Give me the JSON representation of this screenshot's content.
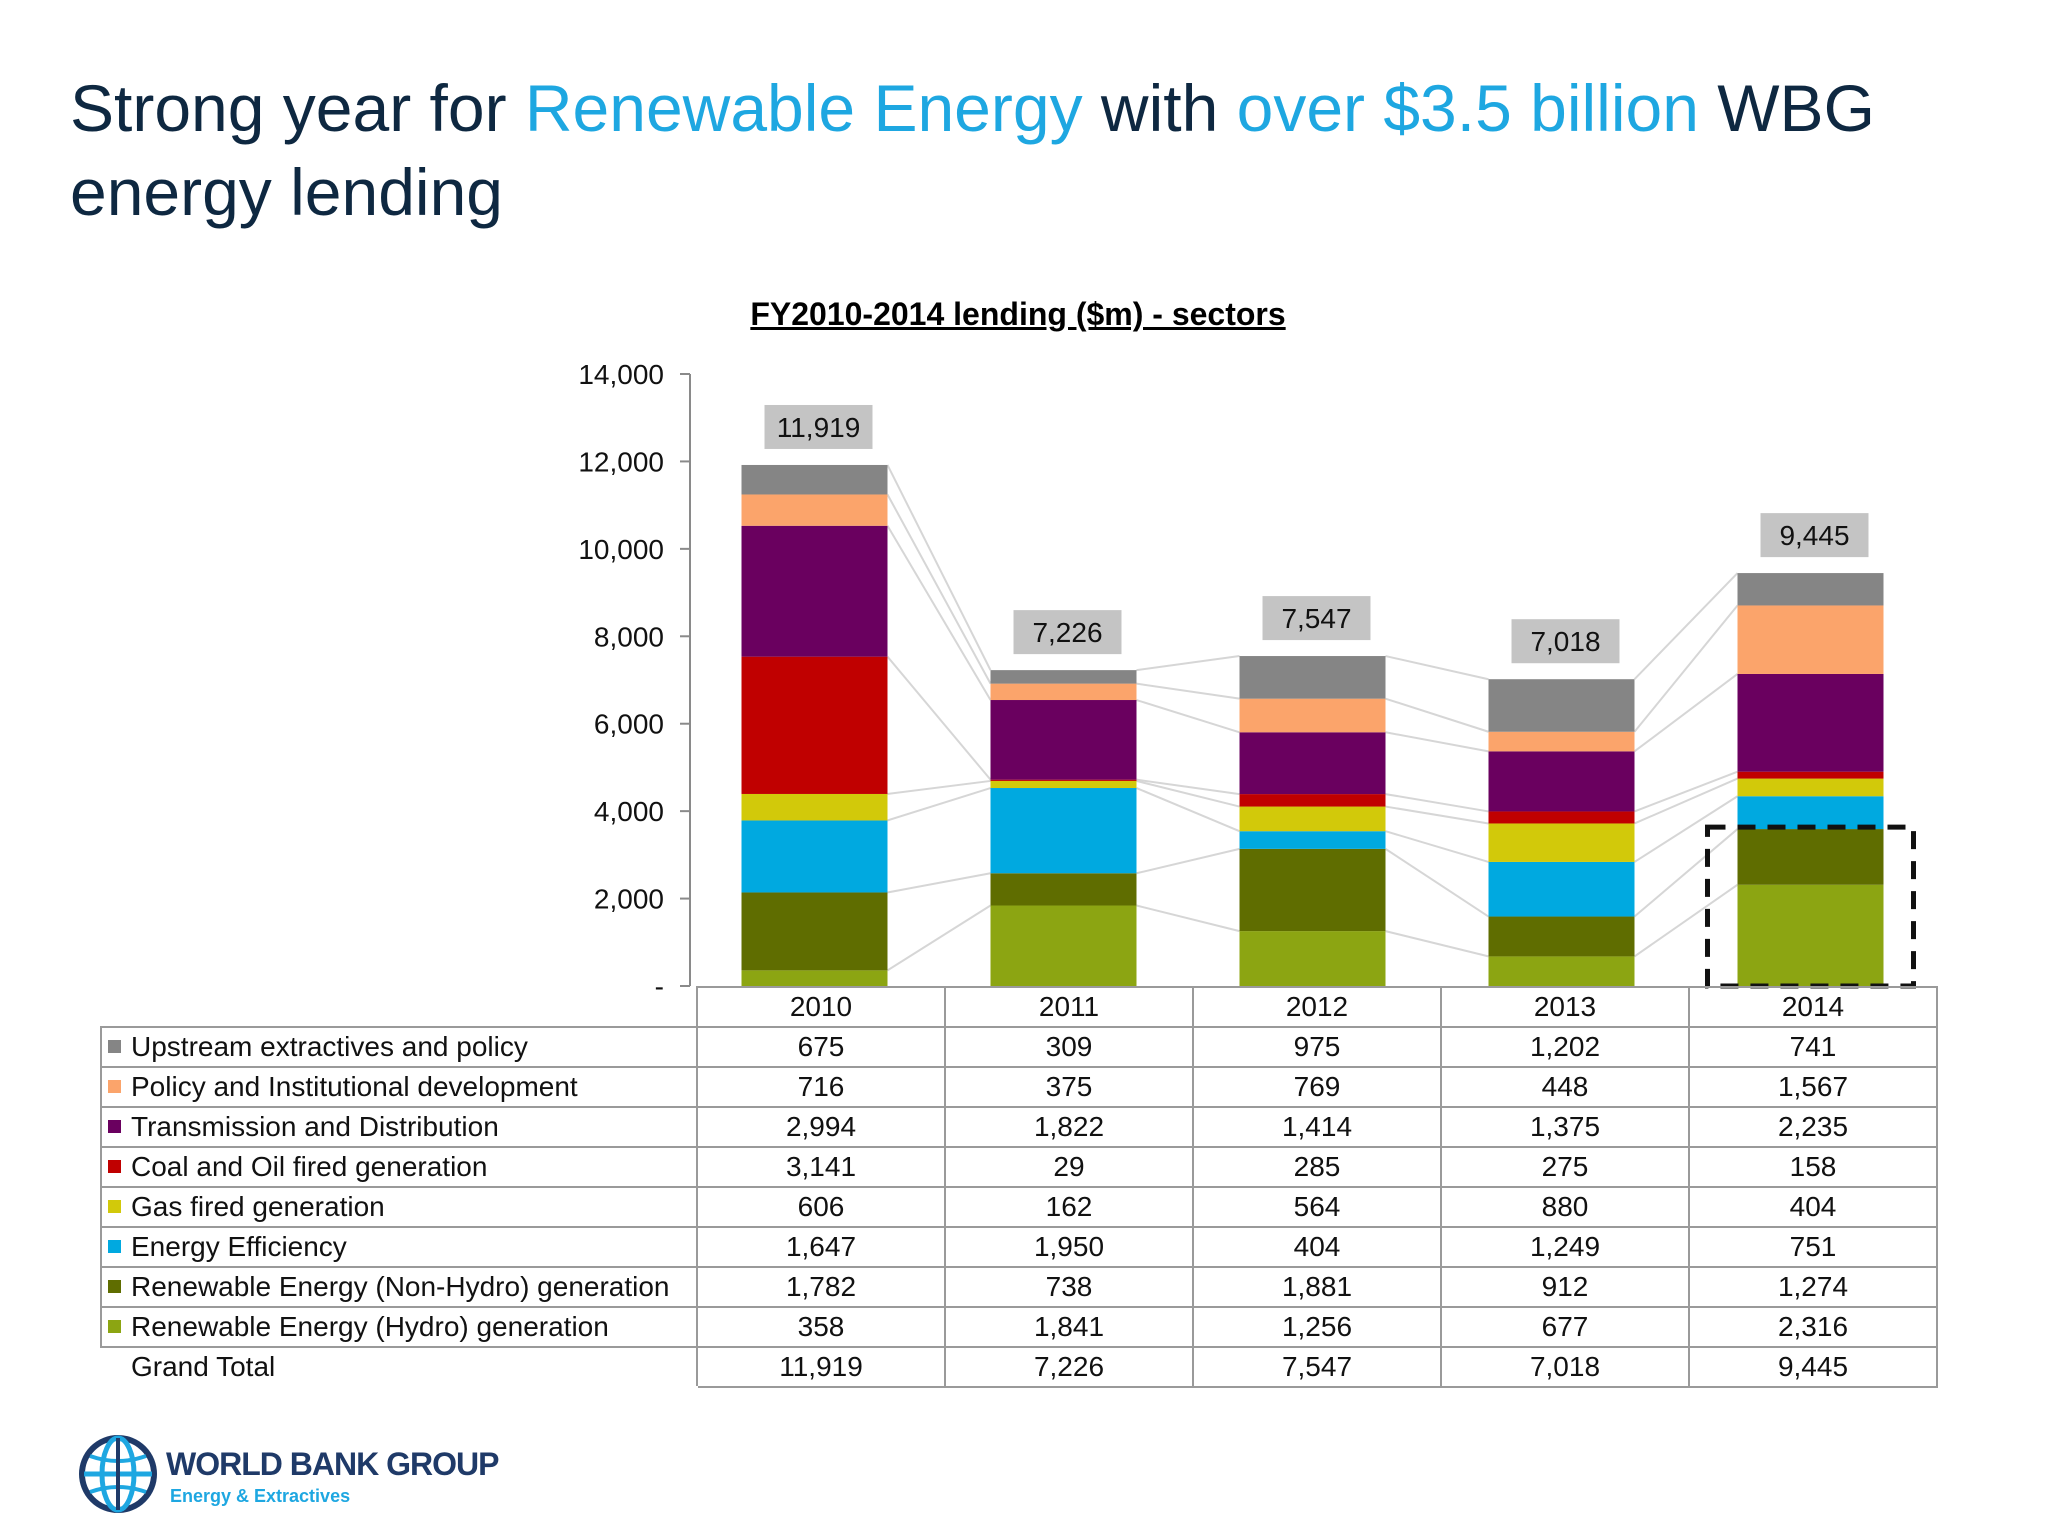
{
  "slide": {
    "title_parts": [
      "Strong year for ",
      "Renewable Energy",
      " with ",
      "over $3.5 billion",
      " WBG energy lending"
    ],
    "accent_color": "#1ea7e1",
    "title_color": "#0e2841"
  },
  "logo": {
    "name": "WORLD BANK GROUP",
    "subtitle": "Energy & Extractives",
    "icon": "globe-icon"
  },
  "chart_data": {
    "type": "bar",
    "stacked": true,
    "title": "FY2010-2014 lending ($m) - sectors",
    "categories": [
      "2010",
      "2011",
      "2012",
      "2013",
      "2014"
    ],
    "ylim": [
      0,
      14000
    ],
    "yticks": [
      0,
      2000,
      4000,
      6000,
      8000,
      10000,
      12000,
      14000
    ],
    "ytick_labels": [
      "-",
      "2,000",
      "4,000",
      "6,000",
      "8,000",
      "10,000",
      "12,000",
      "14,000"
    ],
    "grid": false,
    "highlight": {
      "category": "2014",
      "series": [
        "Renewable Energy (Hydro) generation",
        "Renewable Energy (Non-Hydro) generation"
      ]
    },
    "series": [
      {
        "name": "Renewable Energy (Hydro) generation",
        "color": "#8ca512",
        "values": [
          358,
          1841,
          1256,
          677,
          2316
        ],
        "labels": [
          "358",
          "1,841",
          "1,256",
          "677",
          "2,316"
        ]
      },
      {
        "name": "Renewable Energy (Non-Hydro) generation",
        "color": "#5f6d00",
        "values": [
          1782,
          738,
          1881,
          912,
          1274
        ],
        "labels": [
          "1,782",
          "738",
          "1,881",
          "912",
          "1,274"
        ]
      },
      {
        "name": "Energy Efficiency",
        "color": "#00a9e0",
        "values": [
          1647,
          1950,
          404,
          1249,
          751
        ],
        "labels": [
          "1,647",
          "1,950",
          "404",
          "1,249",
          "751"
        ]
      },
      {
        "name": "Gas fired generation",
        "color": "#d2c90a",
        "values": [
          606,
          162,
          564,
          880,
          404
        ],
        "labels": [
          "606",
          "162",
          "564",
          "880",
          "404"
        ]
      },
      {
        "name": "Coal and Oil fired generation",
        "color": "#c00000",
        "values": [
          3141,
          29,
          285,
          275,
          158
        ],
        "labels": [
          "3,141",
          "29",
          "285",
          "275",
          "158"
        ]
      },
      {
        "name": "Transmission and Distribution",
        "color": "#6a005f",
        "values": [
          2994,
          1822,
          1414,
          1375,
          2235
        ],
        "labels": [
          "2,994",
          "1,822",
          "1,414",
          "1,375",
          "2,235"
        ]
      },
      {
        "name": "Policy and Institutional development",
        "color": "#fba46b",
        "values": [
          716,
          375,
          769,
          448,
          1567
        ],
        "labels": [
          "716",
          "375",
          "769",
          "448",
          "1,567"
        ]
      },
      {
        "name": "Upstream extractives and policy",
        "color": "#858585",
        "values": [
          675,
          309,
          975,
          1202,
          741
        ],
        "labels": [
          "675",
          "309",
          "975",
          "1,202",
          "741"
        ]
      }
    ],
    "totals": [
      11919,
      7226,
      7547,
      7018,
      9445
    ],
    "total_labels": [
      "11,919",
      "7,226",
      "7,547",
      "7,018",
      "9,445"
    ],
    "total_row_label": "Grand Total"
  }
}
